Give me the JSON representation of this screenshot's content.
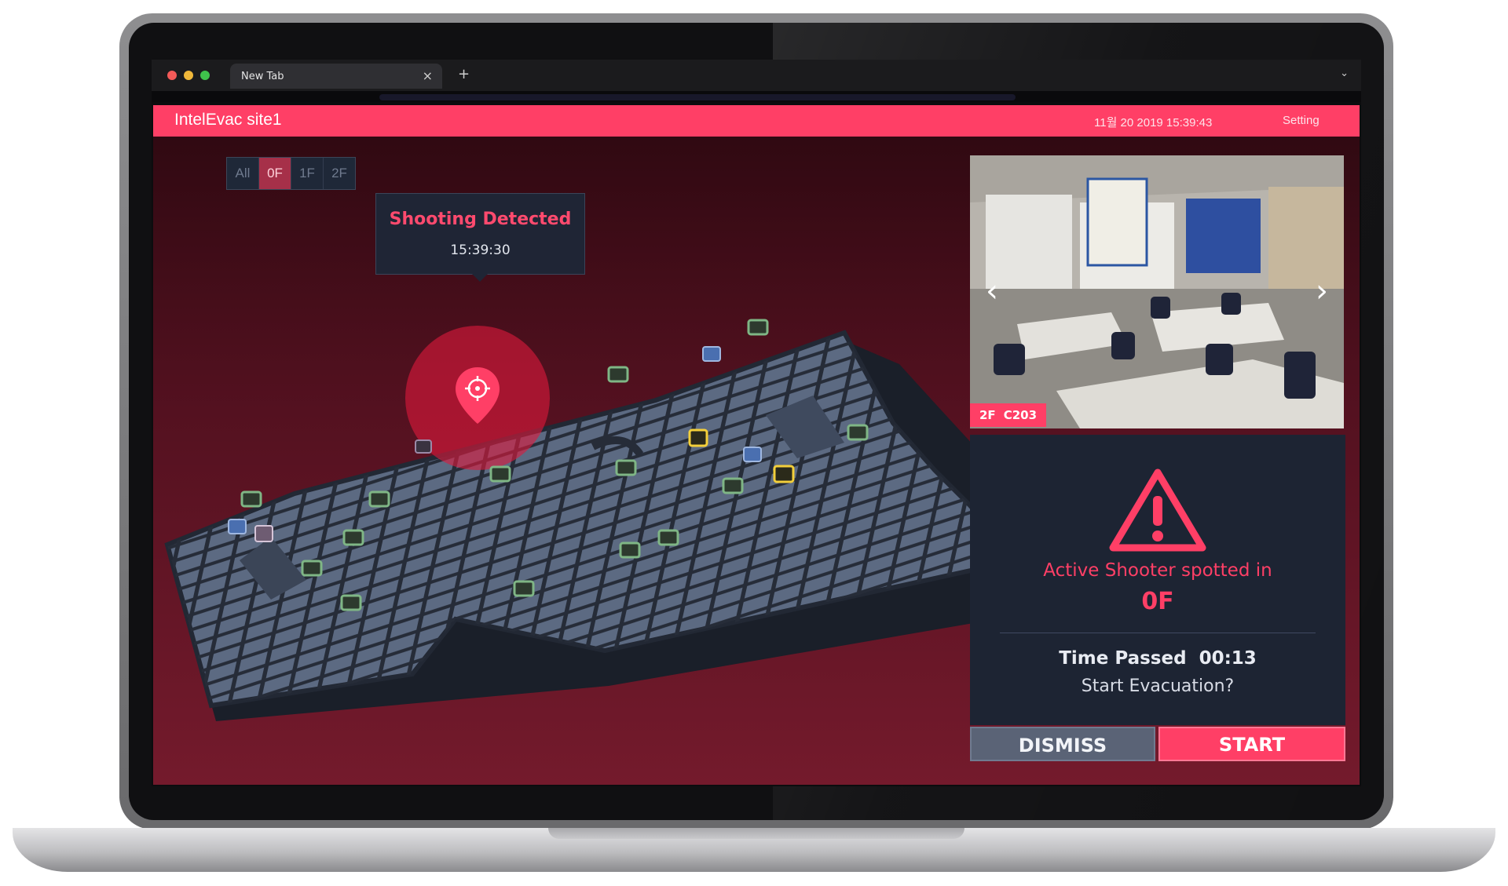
{
  "browser": {
    "tab_title": "New Tab",
    "tab_close": "×",
    "new_tab": "+",
    "tabs_menu": "⌄"
  },
  "app": {
    "site_title": "IntelEvac site1",
    "datetime": "11월 20 2019 15:39:43",
    "setting_label": "Setting",
    "floor_tabs": [
      {
        "label": "All",
        "active": false
      },
      {
        "label": "0F",
        "active": true
      },
      {
        "label": "1F",
        "active": false
      },
      {
        "label": "2F",
        "active": false
      }
    ]
  },
  "map": {
    "alert_title": "Shooting Detected",
    "alert_time": "15:39:30",
    "icons": {
      "exit_sign": "exit-sign-icon",
      "camera": "camera-icon",
      "incident": "location-target-icon",
      "door": "door-icon"
    }
  },
  "camera": {
    "floor": "2F",
    "room": "C203",
    "prev_label": "‹",
    "next_label": "›"
  },
  "alert_panel": {
    "message": "Active Shooter spotted in",
    "floor": "0F",
    "time_label": "Time Passed",
    "time_value": "00:13",
    "question": "Start Evacuation?",
    "dismiss_label": "DISMISS",
    "start_label": "START"
  },
  "colors": {
    "accent": "#ff3f66",
    "panel": "#1d2433",
    "floor_plan": "#5c6a82",
    "walls": "#252b37"
  }
}
